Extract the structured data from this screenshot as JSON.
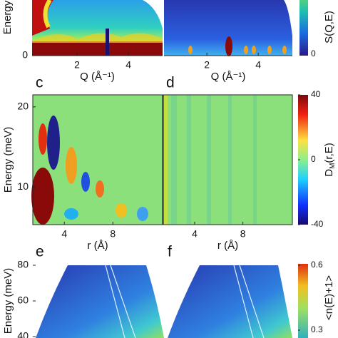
{
  "chart_data": [
    {
      "type": "heatmap",
      "xlabel": "Q (Å⁻¹)",
      "ylabel": "Energy (meV)",
      "xlim": [
        0.25,
        5.33
      ],
      "xticks": [
        2,
        4
      ],
      "yticks": [
        0
      ]
    },
    {
      "type": "heatmap",
      "xlabel": "Q (Å⁻¹)",
      "xlim": [
        0.33,
        5.33
      ],
      "xticks": [
        2,
        4
      ]
    },
    {
      "type": "heatmap",
      "label": "c",
      "xlabel": "r (Å)",
      "ylabel": "Energy (meV)",
      "xlim": [
        1.4,
        12.1
      ],
      "xticks": [
        4,
        8
      ],
      "ylim": [
        5.3,
        21.5
      ],
      "yticks": [
        10,
        20
      ]
    },
    {
      "type": "heatmap",
      "label": "d",
      "xlabel": "r (Å)",
      "xlim": [
        1.4,
        12.1
      ],
      "xticks": [
        4,
        8
      ],
      "ylim": [
        5.3,
        21.5
      ]
    },
    {
      "type": "heatmap",
      "label": "e",
      "ylabel": "Energy (meV)",
      "ylim": [
        39.2,
        80.8
      ],
      "yticks": [
        40,
        60,
        80
      ]
    },
    {
      "type": "heatmap",
      "label": "f",
      "ylim": [
        39.2,
        80.8
      ]
    },
    {
      "type": "colorbar",
      "label": [
        "S(Q,E)"
      ],
      "yticks": [
        0
      ]
    },
    {
      "type": "colorbar",
      "label": [
        "D",
        "M",
        "(r,E)"
      ],
      "ylim": [
        -40,
        40
      ],
      "yticks": [
        -40,
        0,
        40
      ]
    },
    {
      "type": "colorbar",
      "label": [
        "<n(E)+1>"
      ],
      "ylim": [
        0.3,
        0.6
      ],
      "yticks": [
        0.3,
        0.6
      ]
    }
  ]
}
